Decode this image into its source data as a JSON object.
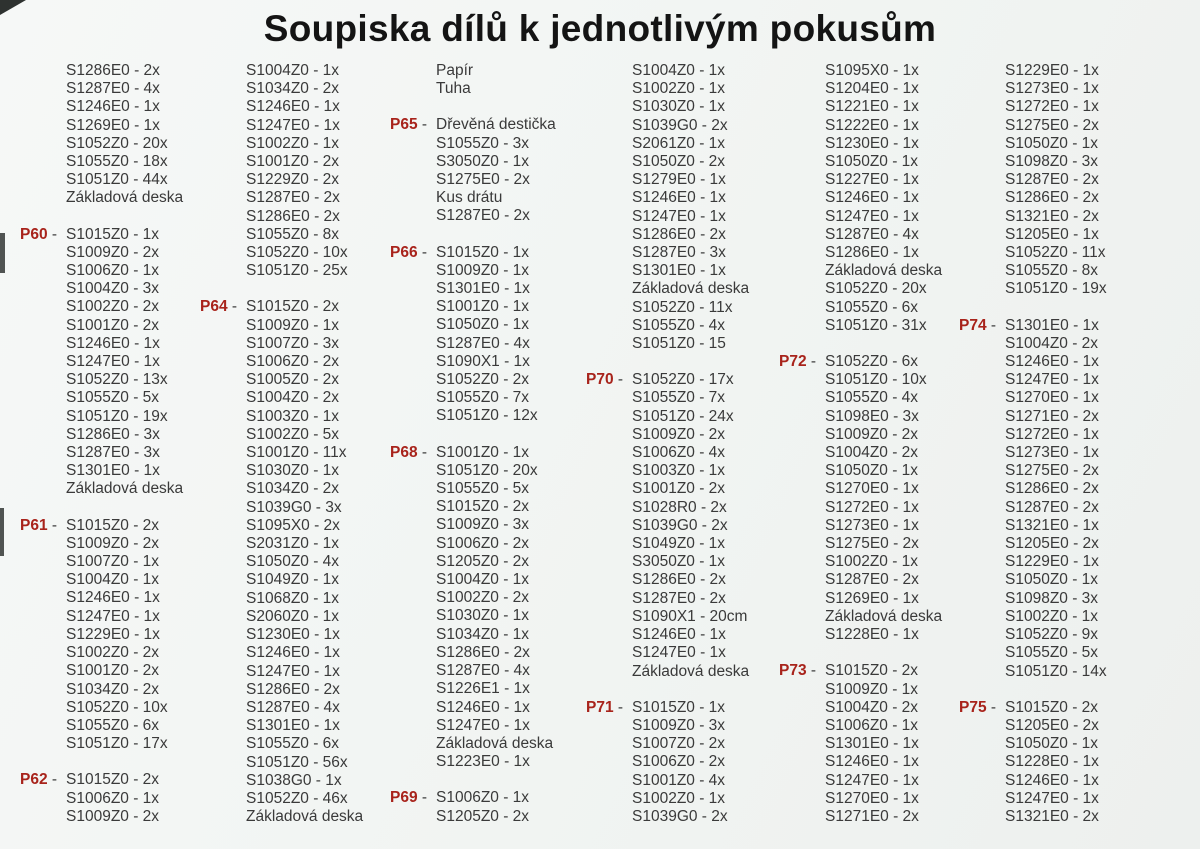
{
  "page": {
    "title": "Soupiska dílů k jednotlivým pokusům"
  },
  "colors": {
    "label_red": "#a8231b",
    "body_text": "#3a3a3a",
    "title_text": "#141414",
    "paper": "#f2f4f3"
  },
  "columns": [
    {
      "blocks": [
        {
          "label": "",
          "items": [
            "S1286E0 - 2x",
            "S1287E0 - 4x",
            "S1246E0 - 1x",
            "S1269E0 - 1x",
            "S1052Z0 - 20x",
            "S1055Z0 - 18x",
            "S1051Z0 - 44x",
            "Základová deska"
          ]
        },
        {
          "label": "P60",
          "items": [
            "S1015Z0 - 1x",
            "S1009Z0 - 2x",
            "S1006Z0 - 1x",
            "S1004Z0 - 3x",
            "S1002Z0 - 2x",
            "S1001Z0 - 2x",
            "S1246E0 - 1x",
            "S1247E0 - 1x",
            "S1052Z0 - 13x",
            "S1055Z0 - 5x",
            "S1051Z0 - 19x",
            "S1286E0 - 3x",
            "S1287E0 - 3x",
            "S1301E0 - 1x",
            "Základová deska"
          ]
        },
        {
          "label": "P61",
          "items": [
            "S1015Z0 - 2x",
            "S1009Z0 - 2x",
            "S1007Z0 - 1x",
            "S1004Z0 - 1x",
            "S1246E0 - 1x",
            "S1247E0 - 1x",
            "S1229E0 - 1x",
            "S1002Z0 - 2x",
            "S1001Z0 - 2x",
            "S1034Z0 - 2x",
            "S1052Z0 - 10x",
            "S1055Z0 - 6x",
            "S1051Z0 - 17x"
          ]
        },
        {
          "label": "P62",
          "items": [
            "S1015Z0 - 2x",
            "S1006Z0 - 1x",
            "S1009Z0 - 2x"
          ]
        }
      ]
    },
    {
      "blocks": [
        {
          "label": "",
          "items": [
            "S1004Z0 - 1x",
            "S1034Z0 - 2x",
            "S1246E0 - 1x",
            "S1247E0 - 1x",
            "S1002Z0 - 1x",
            "S1001Z0 - 2x",
            "S1229Z0 - 2x",
            "S1287E0 - 2x",
            "S1286E0 - 2x",
            "S1055Z0 - 8x",
            "S1052Z0 - 10x",
            "S1051Z0 - 25x"
          ]
        },
        {
          "label": "P64",
          "items": [
            "S1015Z0 - 2x",
            "S1009Z0 - 1x",
            "S1007Z0 - 3x",
            "S1006Z0 - 2x",
            "S1005Z0 - 2x",
            "S1004Z0 - 2x",
            "S1003Z0 - 1x",
            "S1002Z0 - 5x",
            "S1001Z0 - 11x",
            "S1030Z0 - 1x",
            "S1034Z0 - 2x",
            "S1039G0 - 3x",
            "S1095X0 - 2x",
            "S2031Z0 - 1x",
            "S1050Z0 - 4x",
            "S1049Z0 - 1x",
            "S1068Z0 - 1x",
            "S2060Z0 - 1x",
            "S1230E0 - 1x",
            "S1246E0 - 1x",
            "S1247E0 - 1x",
            "S1286E0 - 2x",
            "S1287E0 - 4x",
            "S1301E0 - 1x",
            "S1055Z0 - 6x",
            "S1051Z0 - 56x",
            "S1038G0 - 1x",
            "S1052Z0 - 46x",
            "Základová deska"
          ]
        }
      ]
    },
    {
      "blocks": [
        {
          "label": "",
          "items": [
            "Papír",
            "Tuha"
          ]
        },
        {
          "label": "P65",
          "items": [
            "Dřevěná destička",
            "S1055Z0 - 3x",
            "S3050Z0 - 1x",
            "S1275E0 - 2x",
            "Kus drátu",
            "S1287E0 - 2x"
          ]
        },
        {
          "label": "P66",
          "items": [
            "S1015Z0 - 1x",
            "S1009Z0 - 1x",
            "S1301E0 - 1x",
            "S1001Z0 - 1x",
            "S1050Z0 - 1x",
            "S1287E0 - 4x",
            "S1090X1 - 1x",
            "S1052Z0 - 2x",
            "S1055Z0 - 7x",
            "S1051Z0 - 12x"
          ]
        },
        {
          "label": "P68",
          "items": [
            "S1001Z0 - 1x",
            "S1051Z0 - 20x",
            "S1055Z0 - 5x",
            "S1015Z0 - 2x",
            "S1009Z0 - 3x",
            "S1006Z0 - 2x",
            "S1205Z0 - 2x",
            "S1004Z0 - 1x",
            "S1002Z0 - 2x",
            "S1030Z0 - 1x",
            "S1034Z0 - 1x",
            "S1286E0 - 2x",
            "S1287E0 - 4x",
            "S1226E1 - 1x",
            "S1246E0 - 1x",
            "S1247E0 - 1x",
            "Základová deska",
            "S1223E0 - 1x"
          ]
        },
        {
          "label": "P69",
          "items": [
            "S1006Z0 - 1x",
            "S1205Z0 - 2x"
          ]
        }
      ]
    },
    {
      "blocks": [
        {
          "label": "",
          "items": [
            "S1004Z0 - 1x",
            "S1002Z0 - 1x",
            "S1030Z0 - 1x",
            "S1039G0 - 2x",
            "S2061Z0 - 1x",
            "S1050Z0 - 2x",
            "S1279E0 - 1x",
            "S1246E0 - 1x",
            "S1247E0 - 1x",
            "S1286E0 - 2x",
            "S1287E0 - 3x",
            "S1301E0 - 1x",
            "Základová deska",
            "S1052Z0 - 11x",
            "S1055Z0 - 4x",
            "S1051Z0 - 15"
          ]
        },
        {
          "label": "P70",
          "items": [
            "S1052Z0 - 17x",
            "S1055Z0 - 7x",
            "S1051Z0 - 24x",
            "S1009Z0 - 2x",
            "S1006Z0 - 4x",
            "S1003Z0 - 1x",
            "S1001Z0 - 2x",
            "S1028R0 - 2x",
            "S1039G0 - 2x",
            "S1049Z0 - 1x",
            "S3050Z0 - 1x",
            "S1286E0 - 2x",
            "S1287E0 - 2x",
            "S1090X1 - 20cm",
            "S1246E0 - 1x",
            "S1247E0 - 1x",
            "Základová deska"
          ]
        },
        {
          "label": "P71",
          "items": [
            "S1015Z0 - 1x",
            "S1009Z0 - 3x",
            "S1007Z0 - 2x",
            "S1006Z0 - 2x",
            "S1001Z0 - 4x",
            "S1002Z0 - 1x",
            "S1039G0 - 2x"
          ]
        }
      ]
    },
    {
      "blocks": [
        {
          "label": "",
          "items": [
            "S1095X0 - 1x",
            "S1204E0 - 1x",
            "S1221E0 - 1x",
            "S1222E0 - 1x",
            "S1230E0 - 1x",
            "S1050Z0 - 1x",
            "S1227E0 - 1x",
            "S1246E0 - 1x",
            "S1247E0 - 1x",
            "S1287E0 - 4x",
            "S1286E0 - 1x",
            "Základová deska",
            "S1052Z0 - 20x",
            "S1055Z0 - 6x",
            "S1051Z0 - 31x"
          ]
        },
        {
          "label": "P72",
          "items": [
            "S1052Z0 - 6x",
            "S1051Z0 - 10x",
            "S1055Z0 - 4x",
            "S1098E0 - 3x",
            "S1009Z0 - 2x",
            "S1004Z0 - 2x",
            "S1050Z0 - 1x",
            "S1270E0 - 1x",
            "S1272E0 - 1x",
            "S1273E0 - 1x",
            "S1275E0 - 2x",
            "S1002Z0 - 1x",
            "S1287E0 - 2x",
            "S1269E0 - 1x",
            "Základová deska",
            "S1228E0 - 1x"
          ]
        },
        {
          "label": "P73",
          "items": [
            "S1015Z0 - 2x",
            "S1009Z0 - 1x",
            "S1004Z0 - 2x",
            "S1006Z0 - 1x",
            "S1301E0 - 1x",
            "S1246E0 - 1x",
            "S1247E0 - 1x",
            "S1270E0 - 1x",
            "S1271E0 - 2x"
          ]
        }
      ]
    },
    {
      "blocks": [
        {
          "label": "",
          "items": [
            "S1229E0 - 1x",
            "S1273E0 - 1x",
            "S1272E0 - 1x",
            "S1275E0 - 2x",
            "S1050Z0 - 1x",
            "S1098Z0 - 3x",
            "S1287E0 - 2x",
            "S1286E0 - 2x",
            "S1321E0 - 2x",
            "S1205E0 - 1x",
            "S1052Z0 - 11x",
            "S1055Z0 - 8x",
            "S1051Z0 - 19x"
          ]
        },
        {
          "label": "P74",
          "items": [
            "S1301E0 - 1x",
            "S1004Z0 - 2x",
            "S1246E0 - 1x",
            "S1247E0 - 1x",
            "S1270E0 - 1x",
            "S1271E0 - 2x",
            "S1272E0 - 1x",
            "S1273E0 - 1x",
            "S1275E0 - 2x",
            "S1286E0 - 2x",
            "S1287E0 - 2x",
            "S1321E0 - 1x",
            "S1205E0 - 2x",
            "S1229E0 - 1x",
            "S1050Z0 - 1x",
            "S1098Z0 - 3x",
            "S1002Z0 - 1x",
            "S1052Z0 - 9x",
            "S1055Z0 - 5x",
            "S1051Z0 - 14x"
          ]
        },
        {
          "label": "P75",
          "items": [
            "S1015Z0 - 2x",
            "S1205E0 - 2x",
            "S1050Z0 - 1x",
            "S1228E0 - 1x",
            "S1246E0 - 1x",
            "S1247E0 - 1x",
            "S1321E0 - 2x"
          ]
        }
      ]
    }
  ]
}
